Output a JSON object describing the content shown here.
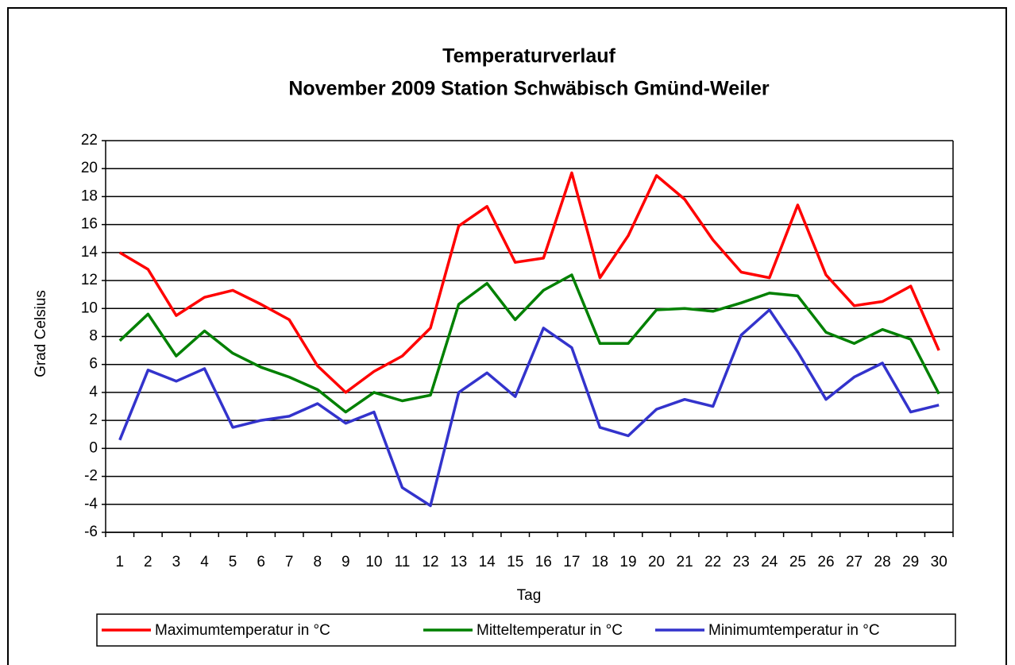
{
  "chart_data": {
    "type": "line",
    "title": "Temperaturverlauf",
    "subtitle": "November 2009 Station Schwäbisch Gmünd-Weiler",
    "x_label": "Tag",
    "y_label": "Grad Celsius",
    "categories": [
      "1",
      "2",
      "3",
      "4",
      "5",
      "6",
      "7",
      "8",
      "9",
      "10",
      "11",
      "12",
      "13",
      "14",
      "15",
      "16",
      "17",
      "18",
      "19",
      "20",
      "21",
      "22",
      "23",
      "24",
      "25",
      "26",
      "27",
      "28",
      "29",
      "30"
    ],
    "series": [
      {
        "name": "Maximumtemperatur in °C",
        "color": "#ff0000",
        "values": [
          14.0,
          12.8,
          9.5,
          10.8,
          11.3,
          10.3,
          9.2,
          5.9,
          4.0,
          5.5,
          6.6,
          8.6,
          15.9,
          17.3,
          13.3,
          13.6,
          19.7,
          12.2,
          15.2,
          19.5,
          17.8,
          14.9,
          12.6,
          12.2,
          17.4,
          12.4,
          10.2,
          10.5,
          11.6,
          7.0
        ]
      },
      {
        "name": "Mitteltemperatur in °C",
        "color": "#008000",
        "values": [
          7.7,
          9.6,
          6.6,
          8.4,
          6.8,
          5.8,
          5.1,
          4.2,
          2.6,
          4.0,
          3.4,
          3.8,
          10.3,
          11.8,
          9.2,
          11.3,
          12.4,
          7.5,
          7.5,
          9.9,
          10.0,
          9.8,
          10.4,
          11.1,
          10.9,
          8.3,
          7.5,
          8.5,
          7.8,
          3.9
        ]
      },
      {
        "name": "Minimumtemperatur in °C",
        "color": "#3333cc",
        "values": [
          0.6,
          5.6,
          4.8,
          5.7,
          1.5,
          2.0,
          2.3,
          3.2,
          1.8,
          2.6,
          -2.8,
          -4.1,
          4.0,
          5.4,
          3.7,
          8.6,
          7.2,
          1.5,
          0.9,
          2.8,
          3.5,
          3.0,
          8.1,
          9.9,
          6.9,
          3.5,
          5.1,
          6.1,
          2.6,
          3.1
        ]
      }
    ],
    "ylim": [
      -6,
      22
    ],
    "yticks": [
      -6,
      -4,
      -2,
      0,
      2,
      4,
      6,
      8,
      10,
      12,
      14,
      16,
      18,
      20,
      22
    ],
    "grid": true,
    "legend": "bottom"
  }
}
